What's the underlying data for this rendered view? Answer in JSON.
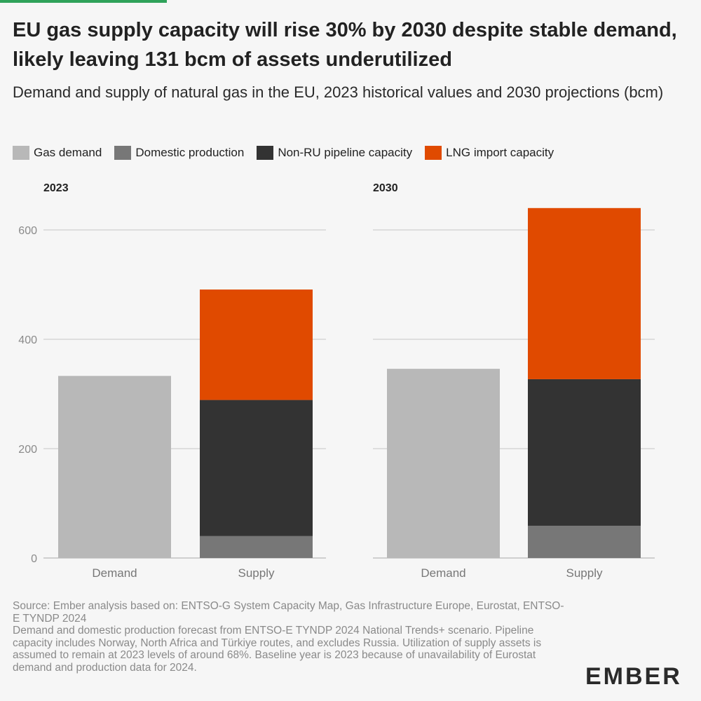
{
  "colors": {
    "accent": "#2fa25a",
    "demand": "#b8b8b8",
    "domestic": "#777777",
    "pipeline": "#333333",
    "lng": "#e04a00"
  },
  "header": {
    "title": "EU gas supply capacity will rise 30% by 2030 despite stable demand, likely leaving 131 bcm of assets underutilized",
    "subtitle": "Demand and supply of natural gas in the EU, 2023 historical values and 2030 projections (bcm)"
  },
  "legend": [
    {
      "label": "Gas demand",
      "color": "#b8b8b8"
    },
    {
      "label": "Domestic production",
      "color": "#777777"
    },
    {
      "label": "Non-RU pipeline capacity",
      "color": "#333333"
    },
    {
      "label": "LNG import capacity",
      "color": "#e04a00"
    }
  ],
  "chart_data": {
    "type": "bar",
    "stacked": true,
    "title": "Demand and supply of natural gas in the EU, 2023 historical values and 2030 projections (bcm)",
    "ylabel": "bcm",
    "ylim": [
      0,
      650
    ],
    "yticks": [
      0,
      200,
      400,
      600
    ],
    "grid": true,
    "legend_position": "top",
    "categories": [
      "Demand",
      "Supply"
    ],
    "panels": [
      {
        "label": "2023",
        "bars": [
          {
            "category": "Demand",
            "segments": [
              {
                "series": "Gas demand",
                "value": 333
              }
            ]
          },
          {
            "category": "Supply",
            "segments": [
              {
                "series": "Domestic production",
                "value": 40
              },
              {
                "series": "Non-RU pipeline capacity",
                "value": 249
              },
              {
                "series": "LNG import capacity",
                "value": 202
              }
            ]
          }
        ]
      },
      {
        "label": "2030",
        "bars": [
          {
            "category": "Demand",
            "segments": [
              {
                "series": "Gas demand",
                "value": 346
              }
            ]
          },
          {
            "category": "Supply",
            "segments": [
              {
                "series": "Domestic production",
                "value": 59
              },
              {
                "series": "Non-RU pipeline capacity",
                "value": 268
              },
              {
                "series": "LNG import capacity",
                "value": 313
              }
            ]
          }
        ]
      }
    ]
  },
  "footer": {
    "source": "Source: Ember analysis based on: ENTSO-G System Capacity Map, Gas Infrastructure Europe, Eurostat, ENTSO-E TYNDP 2024",
    "note": "Demand and domestic production forecast from ENTSO-E TYNDP 2024 National Trends+ scenario. Pipeline capacity includes Norway, North Africa and Türkiye routes, and excludes Russia. Utilization of supply assets is assumed to remain at 2023 levels of around 68%. Baseline year is 2023 because of unavailability of Eurostat demand and production data for 2024.",
    "logo": "EMBER"
  }
}
